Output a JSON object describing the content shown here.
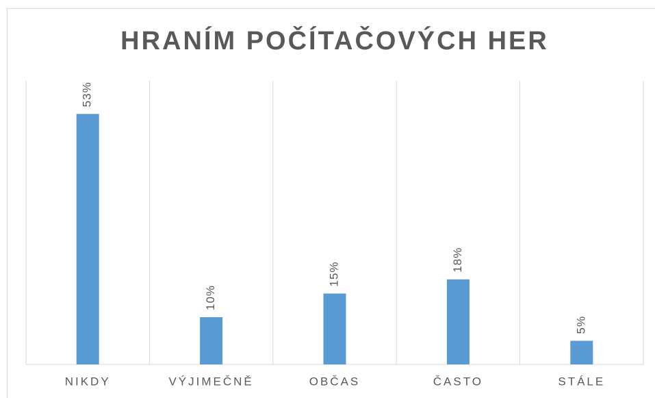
{
  "chart_data": {
    "type": "bar",
    "title": "HRANÍM POČÍTAČOVÝCH HER",
    "categories": [
      "NIKDY",
      "VÝJIMEČNĚ",
      "OBČAS",
      "ČASTO",
      "STÁLE"
    ],
    "values": [
      53,
      10,
      15,
      18,
      5
    ],
    "value_labels": [
      "53%",
      "10%",
      "15%",
      "18%",
      "5%"
    ],
    "color": "#5b9bd5",
    "ylim": [
      0,
      60
    ]
  }
}
